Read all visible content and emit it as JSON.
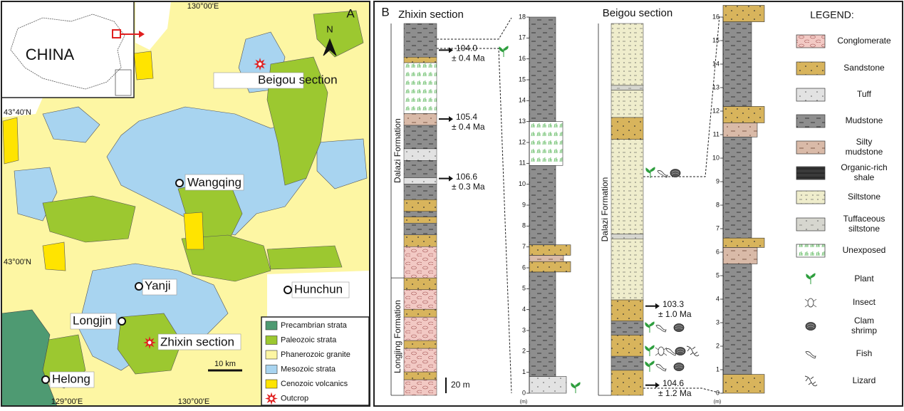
{
  "panel_a": {
    "label": "A",
    "inset_label": "CHINA",
    "north": "N",
    "coords": {
      "top_lon": "130°00'E",
      "lat_north": "43°40'N",
      "lat_south": "43°00'N",
      "bottom_lon_west": "129°00'E",
      "bottom_lon_east": "130°00'E"
    },
    "places": [
      "Beigou section",
      "Wangqing",
      "Yanji",
      "Hunchun",
      "Longjin",
      "Zhixin section",
      "Helong"
    ],
    "scale_bar": "10 km",
    "legend": [
      {
        "label": "Precambrian strata",
        "color": "#4e9a72"
      },
      {
        "label": "Paleozoic strata",
        "color": "#9cc830"
      },
      {
        "label": "Phanerozoic granite",
        "color": "#fdf6a3"
      },
      {
        "label": "Mesozoic strata",
        "color": "#a8d4f0"
      },
      {
        "label": "Cenozoic volcanics",
        "color": "#ffe400"
      },
      {
        "label": "Outcrop",
        "color": "#e02020"
      }
    ]
  },
  "panel_b": {
    "label": "B",
    "zhixin": {
      "title": "Zhixin section",
      "formations": [
        {
          "name": "Dalazi Formation",
          "from": 150,
          "to": 475
        },
        {
          "name": "Longjing Formation",
          "from": 0,
          "to": 150
        }
      ],
      "layers": [
        {
          "from": 0,
          "to": 20,
          "lithology": "Conglomerate"
        },
        {
          "from": 20,
          "to": 30,
          "lithology": "Sandstone"
        },
        {
          "from": 30,
          "to": 60,
          "lithology": "Conglomerate"
        },
        {
          "from": 60,
          "to": 70,
          "lithology": "Sandstone"
        },
        {
          "from": 70,
          "to": 100,
          "lithology": "Conglomerate"
        },
        {
          "from": 100,
          "to": 110,
          "lithology": "Sandstone"
        },
        {
          "from": 110,
          "to": 135,
          "lithology": "Conglomerate"
        },
        {
          "from": 135,
          "to": 150,
          "lithology": "Sandstone"
        },
        {
          "from": 150,
          "to": 190,
          "lithology": "Conglomerate"
        },
        {
          "from": 190,
          "to": 205,
          "lithology": "Sandstone"
        },
        {
          "from": 205,
          "to": 220,
          "lithology": "Mudstone"
        },
        {
          "from": 220,
          "to": 228,
          "lithology": "Sandstone"
        },
        {
          "from": 228,
          "to": 235,
          "lithology": "Mudstone"
        },
        {
          "from": 235,
          "to": 250,
          "lithology": "Sandstone"
        },
        {
          "from": 250,
          "to": 270,
          "lithology": "Mudstone"
        },
        {
          "from": 270,
          "to": 278,
          "lithology": "Tuff"
        },
        {
          "from": 278,
          "to": 300,
          "lithology": "Mudstone"
        },
        {
          "from": 300,
          "to": 315,
          "lithology": "Tuff"
        },
        {
          "from": 315,
          "to": 345,
          "lithology": "Mudstone"
        },
        {
          "from": 345,
          "to": 360,
          "lithology": "Silty mudstone"
        },
        {
          "from": 360,
          "to": 425,
          "lithology": "Unexposed"
        },
        {
          "from": 425,
          "to": 432,
          "lithology": "Sandstone"
        },
        {
          "from": 432,
          "to": 475,
          "lithology": "Mudstone"
        }
      ],
      "ages": [
        {
          "height": 441,
          "age": "104.0",
          "error": "± 0.4 Ma"
        },
        {
          "height": 353,
          "age": "105.4",
          "error": "± 0.4 Ma"
        },
        {
          "height": 277,
          "age": "106.6",
          "error": "± 0.3 Ma"
        }
      ],
      "scale_bar": {
        "value": 20,
        "label": "20 m"
      }
    },
    "zhixin_detail": {
      "unit": "(m)",
      "ylim": [
        0,
        18
      ],
      "yticks": [
        0,
        1,
        2,
        3,
        4,
        5,
        6,
        7,
        8,
        9,
        10,
        11,
        12,
        13,
        14,
        15,
        16,
        17,
        18
      ],
      "layers": [
        {
          "from": 0,
          "to": 0.8,
          "lithology": "Tuff"
        },
        {
          "from": 0.8,
          "to": 5.8,
          "lithology": "Mudstone"
        },
        {
          "from": 5.8,
          "to": 6.3,
          "lithology": "Sandstone"
        },
        {
          "from": 6.3,
          "to": 6.6,
          "lithology": "Silty mudstone"
        },
        {
          "from": 6.6,
          "to": 7.1,
          "lithology": "Sandstone"
        },
        {
          "from": 7.1,
          "to": 10.9,
          "lithology": "Mudstone"
        },
        {
          "from": 10.9,
          "to": 13,
          "lithology": "Unexposed"
        },
        {
          "from": 13,
          "to": 18,
          "lithology": "Mudstone"
        }
      ]
    },
    "beigou": {
      "title": "Beigou section",
      "formations": [
        {
          "name": "Dalazi Formation",
          "from": 0,
          "to": 475
        }
      ],
      "layers": [
        {
          "from": 0,
          "to": 32,
          "lithology": "Sandstone"
        },
        {
          "from": 32,
          "to": 50,
          "lithology": "Mudstone"
        },
        {
          "from": 50,
          "to": 77,
          "lithology": "Sandstone"
        },
        {
          "from": 77,
          "to": 95,
          "lithology": "Mudstone"
        },
        {
          "from": 95,
          "to": 122,
          "lithology": "Sandstone"
        },
        {
          "from": 122,
          "to": 200,
          "lithology": "Siltstone"
        },
        {
          "from": 200,
          "to": 206,
          "lithology": "Tuffaceous siltstone"
        },
        {
          "from": 206,
          "to": 327,
          "lithology": "Siltstone"
        },
        {
          "from": 327,
          "to": 355,
          "lithology": "Sandstone"
        },
        {
          "from": 355,
          "to": 390,
          "lithology": "Siltstone"
        },
        {
          "from": 390,
          "to": 396,
          "lithology": "Tuffaceous siltstone"
        },
        {
          "from": 396,
          "to": 475,
          "lithology": "Siltstone"
        }
      ],
      "ages": [
        {
          "height": 114,
          "age": "103.3",
          "error": "± 1.0 Ma"
        },
        {
          "height": 13,
          "age": "104.6",
          "error": "± 1.2 Ma"
        }
      ]
    },
    "beigou_detail": {
      "unit": "(m)",
      "ylim": [
        0,
        16
      ],
      "yticks": [
        0,
        1,
        2,
        3,
        4,
        5,
        6,
        7,
        8,
        9,
        10,
        11,
        12,
        13,
        14,
        15,
        16
      ],
      "layers": [
        {
          "from": 0,
          "to": 0.8,
          "lithology": "Sandstone"
        },
        {
          "from": 0.8,
          "to": 5.5,
          "lithology": "Mudstone"
        },
        {
          "from": 5.5,
          "to": 6.2,
          "lithology": "Silty mudstone"
        },
        {
          "from": 6.2,
          "to": 6.6,
          "lithology": "Sandstone"
        },
        {
          "from": 6.6,
          "to": 10.9,
          "lithology": "Mudstone"
        },
        {
          "from": 10.9,
          "to": 11.5,
          "lithology": "Silty mudstone"
        },
        {
          "from": 11.5,
          "to": 12.2,
          "lithology": "Sandstone"
        },
        {
          "from": 12.2,
          "to": 15.8,
          "lithology": "Mudstone"
        },
        {
          "from": 15.8,
          "to": 16.5,
          "lithology": "Sandstone"
        }
      ]
    },
    "legend_title": "LEGEND:",
    "legend": [
      {
        "label": "Conglomerate",
        "color": "#f2c9c4"
      },
      {
        "label": "Sandstone",
        "color": "#d8b45c"
      },
      {
        "label": "Tuff",
        "color": "#e2e2e2"
      },
      {
        "label": "Mudstone",
        "color": "#8e8e8e"
      },
      {
        "label": "Silty mudstone",
        "color": "#d9baa8"
      },
      {
        "label": "Organic-rich shale",
        "color": "#3a3a3a"
      },
      {
        "label": "Siltstone",
        "color": "#efedcc"
      },
      {
        "label": "Tuffaceous siltstone",
        "color": "#d6d6cf"
      },
      {
        "label": "Unexposed",
        "color": "#ffffff"
      },
      {
        "label": "Plant"
      },
      {
        "label": "Insect"
      },
      {
        "label": "Clam shrimp"
      },
      {
        "label": "Fish"
      },
      {
        "label": "Lizard"
      }
    ]
  }
}
